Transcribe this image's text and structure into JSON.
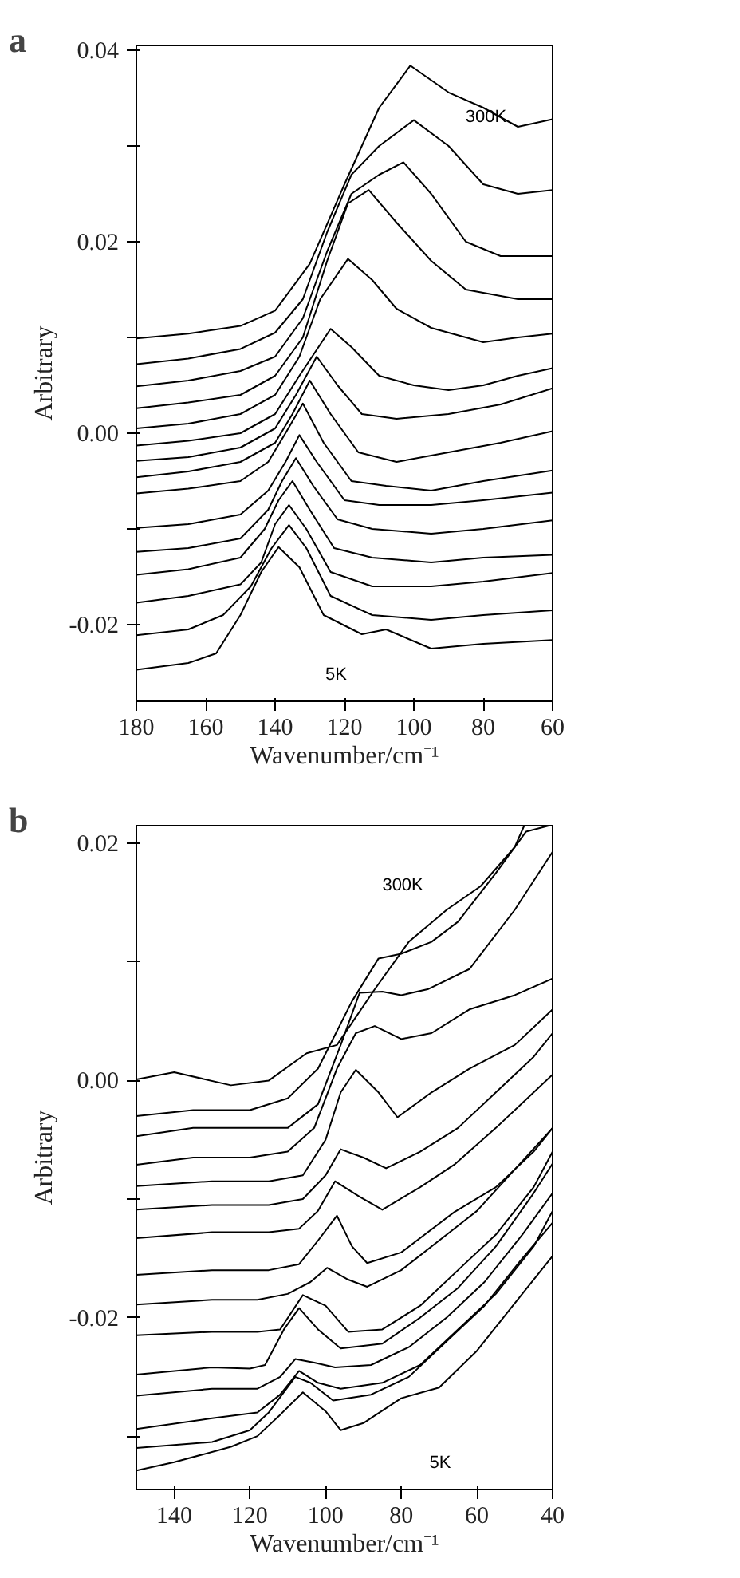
{
  "chart_data": [
    {
      "type": "line",
      "title": "a",
      "xlabel": "Wavenumber/cm⁻¹",
      "ylabel": "Arbitrary",
      "xlim": [
        180,
        60
      ],
      "ylim": [
        -0.028,
        0.0405
      ],
      "xticks": [
        180,
        160,
        140,
        120,
        100,
        80,
        60
      ],
      "yticks": [
        -0.02,
        {
          "value": -0.01,
          "label": null
        },
        {
          "value": 0,
          "label": "0.00"
        },
        {
          "value": 0.01,
          "label": null
        },
        0.02,
        {
          "value": 0.03,
          "label": null
        },
        0.04
      ],
      "annotations": [
        "300K",
        "5K"
      ],
      "series": [
        {
          "color": "#000000",
          "x": [
            180,
            165,
            150,
            140,
            130,
            120,
            110,
            101,
            90,
            80,
            70,
            60
          ],
          "values": [
            0.0099,
            0.0104,
            0.0112,
            0.0128,
            0.0177,
            0.026,
            0.034,
            0.0384,
            0.0356,
            0.034,
            0.032,
            0.0328
          ]
        },
        {
          "color": "#000000",
          "x": [
            180,
            165,
            150,
            140,
            132,
            125,
            118,
            110,
            100,
            90,
            80,
            70,
            60
          ],
          "values": [
            0.0072,
            0.0078,
            0.0088,
            0.0105,
            0.014,
            0.021,
            0.027,
            0.03,
            0.0327,
            0.03,
            0.026,
            0.025,
            0.0254
          ]
        },
        {
          "color": "#000000",
          "x": [
            180,
            165,
            150,
            140,
            132,
            125,
            118,
            110,
            103,
            95,
            85,
            75,
            60
          ],
          "values": [
            0.0049,
            0.0055,
            0.0065,
            0.008,
            0.012,
            0.019,
            0.025,
            0.027,
            0.0283,
            0.025,
            0.02,
            0.0185,
            0.0185
          ]
        },
        {
          "color": "#000000",
          "x": [
            180,
            165,
            150,
            140,
            132,
            125,
            119,
            113,
            105,
            95,
            85,
            70,
            60
          ],
          "values": [
            0.0026,
            0.0032,
            0.004,
            0.006,
            0.01,
            0.018,
            0.024,
            0.0254,
            0.022,
            0.018,
            0.015,
            0.014,
            0.014
          ]
        },
        {
          "color": "#000000",
          "x": [
            180,
            165,
            150,
            140,
            133,
            127,
            119,
            112,
            105,
            95,
            80,
            70,
            60
          ],
          "values": [
            0.0005,
            0.001,
            0.002,
            0.004,
            0.008,
            0.014,
            0.0182,
            0.016,
            0.013,
            0.011,
            0.0095,
            0.01,
            0.0104
          ]
        },
        {
          "color": "#000000",
          "x": [
            180,
            165,
            150,
            140,
            133,
            124,
            118,
            110,
            100,
            90,
            80,
            70,
            60
          ],
          "values": [
            -0.0013,
            -0.0008,
            0,
            0.002,
            0.006,
            0.0109,
            0.009,
            0.006,
            0.005,
            0.0045,
            0.005,
            0.006,
            0.0068
          ]
        },
        {
          "color": "#000000",
          "x": [
            180,
            165,
            150,
            140,
            134,
            128,
            122,
            115,
            105,
            90,
            75,
            60
          ],
          "values": [
            -0.0029,
            -0.0025,
            -0.0015,
            0.0005,
            0.004,
            0.008,
            0.005,
            0.002,
            0.0015,
            0.002,
            0.003,
            0.0047
          ]
        },
        {
          "color": "#000000",
          "x": [
            180,
            165,
            150,
            140,
            135,
            130,
            124,
            116,
            105,
            90,
            75,
            60
          ],
          "values": [
            -0.0046,
            -0.004,
            -0.003,
            -0.001,
            0.002,
            0.0055,
            0.002,
            -0.002,
            -0.003,
            -0.002,
            -0.001,
            0.0002
          ]
        },
        {
          "color": "#000000",
          "x": [
            180,
            165,
            150,
            142,
            137,
            132,
            126,
            118,
            108,
            95,
            80,
            60
          ],
          "values": [
            -0.0063,
            -0.0058,
            -0.005,
            -0.003,
            0,
            0.0031,
            -0.001,
            -0.005,
            -0.0055,
            -0.006,
            -0.005,
            -0.0039
          ]
        },
        {
          "color": "#000000",
          "x": [
            180,
            165,
            150,
            142,
            137,
            133,
            128,
            120,
            110,
            95,
            80,
            60
          ],
          "values": [
            -0.0099,
            -0.0095,
            -0.0085,
            -0.006,
            -0.003,
            -0.0002,
            -0.003,
            -0.007,
            -0.0075,
            -0.0075,
            -0.007,
            -0.0062
          ]
        },
        {
          "color": "#000000",
          "x": [
            180,
            165,
            150,
            142,
            138,
            134,
            129,
            122,
            112,
            95,
            80,
            60
          ],
          "values": [
            -0.0124,
            -0.012,
            -0.011,
            -0.008,
            -0.005,
            -0.0026,
            -0.0055,
            -0.009,
            -0.01,
            -0.0105,
            -0.01,
            -0.0091
          ]
        },
        {
          "color": "#000000",
          "x": [
            180,
            165,
            150,
            143,
            139,
            135,
            130,
            123,
            112,
            95,
            80,
            60
          ],
          "values": [
            -0.0148,
            -0.0142,
            -0.013,
            -0.01,
            -0.007,
            -0.005,
            -0.008,
            -0.012,
            -0.013,
            -0.0135,
            -0.013,
            -0.0127
          ]
        },
        {
          "color": "#000000",
          "x": [
            180,
            165,
            150,
            144,
            140,
            136,
            131,
            124,
            112,
            95,
            80,
            60
          ],
          "values": [
            -0.0177,
            -0.017,
            -0.0158,
            -0.0135,
            -0.0095,
            -0.0075,
            -0.01,
            -0.0145,
            -0.016,
            -0.016,
            -0.0155,
            -0.0146
          ]
        },
        {
          "color": "#000000",
          "x": [
            180,
            165,
            155,
            147,
            141,
            136,
            131,
            124,
            112,
            95,
            80,
            60
          ],
          "values": [
            -0.0211,
            -0.0205,
            -0.019,
            -0.016,
            -0.012,
            -0.0096,
            -0.012,
            -0.017,
            -0.019,
            -0.0195,
            -0.019,
            -0.0185
          ]
        },
        {
          "color": "#000000",
          "x": [
            180,
            165,
            157,
            150,
            144,
            139,
            133,
            126,
            115,
            108,
            95,
            80,
            60
          ],
          "values": [
            -0.0247,
            -0.024,
            -0.023,
            -0.019,
            -0.0145,
            -0.0119,
            -0.014,
            -0.019,
            -0.021,
            -0.0205,
            -0.0225,
            -0.022,
            -0.0216
          ]
        }
      ]
    },
    {
      "type": "line",
      "title": "b",
      "xlabel": "Wavenumber/cm⁻¹",
      "ylabel": "Arbitrary",
      "xlim": [
        150,
        40
      ],
      "ylim": [
        -0.0345,
        0.0215
      ],
      "xticks": [
        140,
        120,
        100,
        80,
        60,
        40
      ],
      "yticks": [
        {
          "value": -0.03,
          "label": null
        },
        -0.02,
        {
          "value": -0.01,
          "label": null
        },
        {
          "value": 0,
          "label": "0.00"
        },
        {
          "value": 0.01,
          "label": null
        },
        0.02
      ],
      "annotations": [
        "300K",
        "5K"
      ],
      "series": [
        {
          "color": "#000000",
          "x": [
            150,
            140,
            125,
            115,
            105,
            97,
            87,
            78,
            68,
            59,
            50,
            47.5
          ],
          "values": [
            0.0001,
            0.0007,
            -0.0004,
            0,
            0.0023,
            0.003,
            0.0077,
            0.0117,
            0.0144,
            0.0164,
            0.0197,
            0.0215
          ]
        },
        {
          "color": "#000000",
          "x": [
            150,
            135,
            120,
            110,
            102,
            93,
            86,
            80,
            72,
            65,
            55,
            47,
            41
          ],
          "values": [
            -0.003,
            -0.0025,
            -0.0025,
            -0.0015,
            0.001,
            0.0067,
            0.0103,
            0.0107,
            0.0117,
            0.0134,
            0.0175,
            0.021,
            0.0215
          ]
        },
        {
          "color": "#000000",
          "x": [
            150,
            135,
            120,
            110,
            102,
            96,
            91,
            85,
            80,
            73,
            62,
            50,
            40
          ],
          "values": [
            -0.0047,
            -0.004,
            -0.004,
            -0.004,
            -0.002,
            0.003,
            0.0074,
            0.0075,
            0.0072,
            0.0077,
            0.0094,
            0.0144,
            0.0193
          ]
        },
        {
          "color": "#000000",
          "x": [
            150,
            135,
            120,
            110,
            103,
            97,
            92,
            87,
            80,
            72,
            62,
            50,
            40
          ],
          "values": [
            -0.0071,
            -0.0065,
            -0.0065,
            -0.006,
            -0.004,
            0.001,
            0.004,
            0.0046,
            0.0035,
            0.004,
            0.006,
            0.0072,
            0.0086
          ]
        },
        {
          "color": "#000000",
          "x": [
            150,
            130,
            115,
            106,
            100,
            96,
            92,
            86,
            81,
            72,
            62,
            50,
            40
          ],
          "values": [
            -0.0089,
            -0.0085,
            -0.0085,
            -0.008,
            -0.005,
            -0.001,
            0.0009,
            -0.001,
            -0.0031,
            -0.001,
            0.001,
            0.003,
            0.006
          ]
        },
        {
          "color": "#000000",
          "x": [
            150,
            130,
            115,
            106,
            100,
            96,
            90,
            84,
            75,
            65,
            55,
            45,
            40
          ],
          "values": [
            -0.0109,
            -0.0105,
            -0.0105,
            -0.01,
            -0.008,
            -0.0058,
            -0.0065,
            -0.0074,
            -0.006,
            -0.004,
            -0.001,
            0.002,
            0.004
          ]
        },
        {
          "color": "#000000",
          "x": [
            150,
            130,
            115,
            107,
            102,
            97.5,
            91,
            85,
            75,
            66,
            55,
            45,
            40
          ],
          "values": [
            -0.0133,
            -0.0128,
            -0.0128,
            -0.0125,
            -0.011,
            -0.0085,
            -0.0098,
            -0.0109,
            -0.009,
            -0.0071,
            -0.004,
            -0.001,
            0.0005
          ]
        },
        {
          "color": "#000000",
          "x": [
            150,
            130,
            115,
            107,
            102,
            97,
            93,
            89,
            80,
            66,
            55,
            45,
            40
          ],
          "values": [
            -0.0164,
            -0.016,
            -0.016,
            -0.0155,
            -0.0135,
            -0.0114,
            -0.014,
            -0.0154,
            -0.0145,
            -0.0111,
            -0.009,
            -0.006,
            -0.004
          ]
        },
        {
          "color": "#000000",
          "x": [
            150,
            130,
            118,
            110,
            104,
            99.6,
            94,
            89,
            80,
            70,
            60,
            50,
            40
          ],
          "values": [
            -0.0189,
            -0.0185,
            -0.0185,
            -0.018,
            -0.017,
            -0.0158,
            -0.0168,
            -0.0174,
            -0.016,
            -0.0135,
            -0.011,
            -0.0075,
            -0.004
          ]
        },
        {
          "color": "#000000",
          "x": [
            150,
            130,
            118,
            112,
            106,
            100,
            94,
            85,
            75,
            65,
            55,
            45,
            40
          ],
          "values": [
            -0.0215,
            -0.0212,
            -0.0212,
            -0.021,
            -0.0181,
            -0.019,
            -0.0212,
            -0.021,
            -0.019,
            -0.016,
            -0.013,
            -0.009,
            -0.006
          ]
        },
        {
          "color": "#000000",
          "x": [
            150,
            130,
            120,
            116,
            111,
            107,
            102,
            96,
            85,
            75,
            65,
            55,
            45,
            40
          ],
          "values": [
            -0.0248,
            -0.0242,
            -0.0243,
            -0.024,
            -0.021,
            -0.0192,
            -0.021,
            -0.0226,
            -0.0222,
            -0.02,
            -0.0175,
            -0.014,
            -0.0095,
            -0.007
          ]
        },
        {
          "color": "#000000",
          "x": [
            150,
            130,
            118,
            112,
            108,
            103,
            97.5,
            88,
            78,
            68,
            58,
            48,
            40
          ],
          "values": [
            -0.0266,
            -0.026,
            -0.026,
            -0.025,
            -0.0235,
            -0.0238,
            -0.0242,
            -0.024,
            -0.0225,
            -0.02,
            -0.017,
            -0.013,
            -0.0095
          ]
        },
        {
          "color": "#000000",
          "x": [
            150,
            130,
            118,
            112,
            107,
            102,
            96,
            85,
            75,
            65,
            55,
            45,
            40
          ],
          "values": [
            -0.0294,
            -0.0285,
            -0.028,
            -0.0265,
            -0.0245,
            -0.0255,
            -0.026,
            -0.0255,
            -0.024,
            -0.021,
            -0.018,
            -0.014,
            -0.011
          ]
        },
        {
          "color": "#000000",
          "x": [
            150,
            130,
            120,
            115,
            108,
            104,
            98,
            88,
            78,
            68,
            58,
            48,
            40
          ],
          "values": [
            -0.031,
            -0.0305,
            -0.0295,
            -0.028,
            -0.025,
            -0.0255,
            -0.027,
            -0.0265,
            -0.025,
            -0.022,
            -0.019,
            -0.015,
            -0.012
          ]
        },
        {
          "color": "#000000",
          "x": [
            150,
            140,
            125,
            118,
            112,
            106,
            100,
            96,
            90,
            80,
            70,
            60,
            50,
            40
          ],
          "values": [
            -0.0329,
            -0.0322,
            -0.0309,
            -0.03,
            -0.0282,
            -0.0263,
            -0.0279,
            -0.0295,
            -0.0289,
            -0.0268,
            -0.0259,
            -0.0228,
            -0.0188,
            -0.0148
          ]
        }
      ]
    }
  ]
}
